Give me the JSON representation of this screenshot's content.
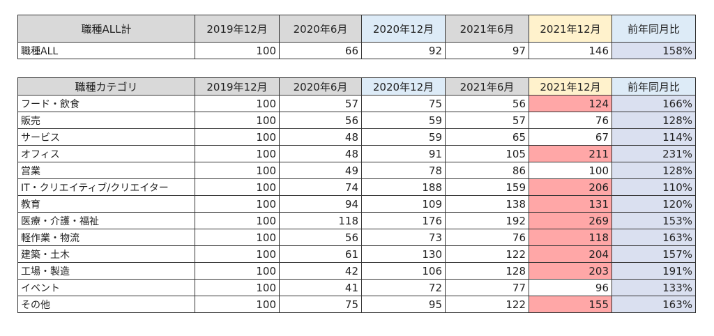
{
  "colors": {
    "header_gray": "#d9d9d9",
    "header_blue": "#ddebf7",
    "header_yellow": "#fff2cc",
    "highlight_red": "#ffa7a7",
    "ratio_bg": "#dae0f0"
  },
  "summary": {
    "headers": [
      "職種ALL計",
      "2019年12月",
      "2020年6月",
      "2020年12月",
      "2021年6月",
      "2021年12月",
      "前年同月比"
    ],
    "rows": [
      {
        "label": "職種ALL",
        "values": [
          "100",
          "66",
          "92",
          "97",
          "146",
          "158%"
        ],
        "highlight": false
      }
    ]
  },
  "category": {
    "headers": [
      "職種カテゴリ",
      "2019年12月",
      "2020年6月",
      "2020年12月",
      "2021年6月",
      "2021年12月",
      "前年同月比"
    ],
    "rows": [
      {
        "label": "フード・飲食",
        "values": [
          "100",
          "57",
          "75",
          "56",
          "124",
          "166%"
        ],
        "highlight": true
      },
      {
        "label": "販売",
        "values": [
          "100",
          "56",
          "59",
          "57",
          "76",
          "128%"
        ],
        "highlight": false
      },
      {
        "label": "サービス",
        "values": [
          "100",
          "48",
          "59",
          "65",
          "67",
          "114%"
        ],
        "highlight": false
      },
      {
        "label": "オフィス",
        "values": [
          "100",
          "48",
          "91",
          "105",
          "211",
          "231%"
        ],
        "highlight": true
      },
      {
        "label": "営業",
        "values": [
          "100",
          "49",
          "78",
          "86",
          "100",
          "128%"
        ],
        "highlight": false
      },
      {
        "label": "IT・クリエイティブ/クリエイター",
        "values": [
          "100",
          "74",
          "188",
          "159",
          "206",
          "110%"
        ],
        "highlight": true
      },
      {
        "label": "教育",
        "values": [
          "100",
          "94",
          "109",
          "138",
          "131",
          "120%"
        ],
        "highlight": true
      },
      {
        "label": "医療・介護・福祉",
        "values": [
          "100",
          "118",
          "176",
          "192",
          "269",
          "153%"
        ],
        "highlight": true
      },
      {
        "label": "軽作業・物流",
        "values": [
          "100",
          "56",
          "73",
          "76",
          "118",
          "163%"
        ],
        "highlight": true
      },
      {
        "label": "建築・土木",
        "values": [
          "100",
          "61",
          "130",
          "122",
          "204",
          "157%"
        ],
        "highlight": true
      },
      {
        "label": "工場・製造",
        "values": [
          "100",
          "42",
          "106",
          "128",
          "203",
          "191%"
        ],
        "highlight": true
      },
      {
        "label": "イベント",
        "values": [
          "100",
          "41",
          "72",
          "77",
          "96",
          "133%"
        ],
        "highlight": false
      },
      {
        "label": "その他",
        "values": [
          "100",
          "75",
          "95",
          "122",
          "155",
          "163%"
        ],
        "highlight": true
      }
    ]
  }
}
